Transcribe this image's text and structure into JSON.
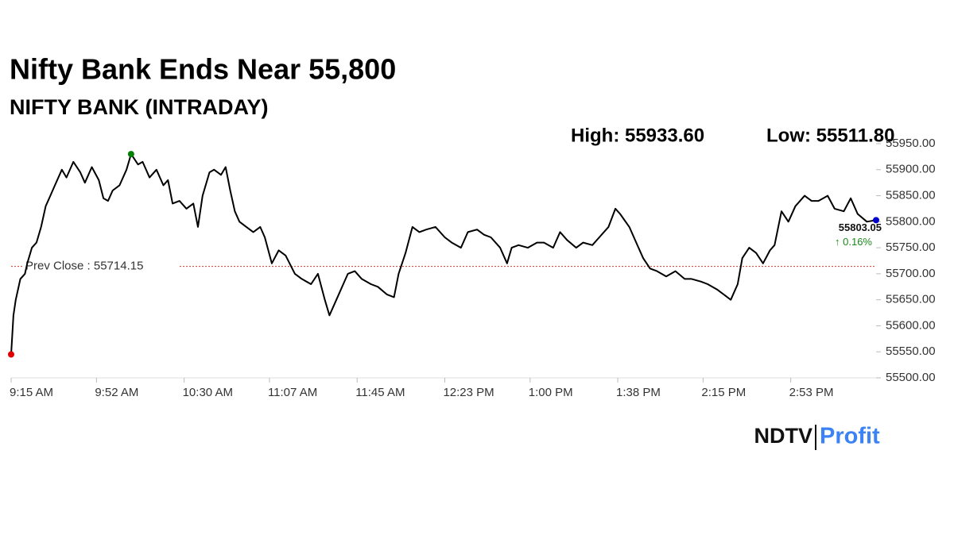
{
  "chart_data": {
    "type": "line",
    "title": "Nifty Bank Ends Near 55,800",
    "subtitle": "NIFTY BANK (INTRADAY)",
    "high": {
      "value": 55933.6,
      "label": "High: 55933.60"
    },
    "low": {
      "value": 55511.8,
      "label": "Low: 55511.80"
    },
    "prev_close": {
      "value": 55714.15,
      "label": "Prev Close : 55714.15"
    },
    "last": {
      "value": 55803.05,
      "label": "55803.05"
    },
    "change": {
      "value": 0.16,
      "label": "↑ 0.16%"
    },
    "xlim": [
      555,
      930
    ],
    "xticks": [
      {
        "value": 555,
        "label": "9:15 AM"
      },
      {
        "value": 592,
        "label": "9:52 AM"
      },
      {
        "value": 630,
        "label": "10:30 AM"
      },
      {
        "value": 667,
        "label": "11:07 AM"
      },
      {
        "value": 705,
        "label": "11:45 AM"
      },
      {
        "value": 743,
        "label": "12:23 PM"
      },
      {
        "value": 780,
        "label": "1:00 PM"
      },
      {
        "value": 818,
        "label": "1:38 PM"
      },
      {
        "value": 855,
        "label": "2:15 PM"
      },
      {
        "value": 893,
        "label": "2:53 PM"
      }
    ],
    "ylim": [
      55500,
      55950
    ],
    "yticks": [
      {
        "value": 55500,
        "label": "55500.00"
      },
      {
        "value": 55550,
        "label": "55550.00"
      },
      {
        "value": 55600,
        "label": "55600.00"
      },
      {
        "value": 55650,
        "label": "55650.00"
      },
      {
        "value": 55700,
        "label": "55700.00"
      },
      {
        "value": 55750,
        "label": "55750.00"
      },
      {
        "value": 55800,
        "label": "55800.00"
      },
      {
        "value": 55850,
        "label": "55850.00"
      },
      {
        "value": 55900,
        "label": "55900.00"
      },
      {
        "value": 55950,
        "label": "55950.00"
      }
    ],
    "x": [
      555,
      556,
      557,
      559,
      561,
      562,
      564,
      566,
      568,
      570,
      572,
      574,
      577,
      579,
      582,
      585,
      587,
      590,
      593,
      595,
      597,
      599,
      602,
      605,
      607,
      610,
      612,
      615,
      618,
      621,
      623,
      625,
      628,
      631,
      634,
      636,
      638,
      641,
      643,
      646,
      648,
      650,
      652,
      654,
      657,
      660,
      663,
      665,
      668,
      671,
      674,
      678,
      681,
      685,
      688,
      691,
      693,
      696,
      699,
      701,
      704,
      707,
      711,
      714,
      718,
      721,
      723,
      726,
      729,
      732,
      735,
      739,
      743,
      746,
      750,
      753,
      757,
      760,
      763,
      767,
      770,
      772,
      775,
      779,
      783,
      786,
      790,
      793,
      796,
      800,
      803,
      807,
      810,
      814,
      817,
      819,
      823,
      826,
      829,
      832,
      835,
      839,
      843,
      847,
      850,
      854,
      857,
      861,
      864,
      867,
      870,
      872,
      875,
      878,
      881,
      884,
      886,
      889,
      892,
      895,
      899,
      902,
      905,
      909,
      912,
      916,
      919,
      922,
      926,
      930
    ],
    "series": [
      {
        "name": "NIFTY BANK",
        "color": "#000000",
        "values": [
          55545,
          55620,
          55650,
          55690,
          55700,
          55720,
          55750,
          55760,
          55790,
          55830,
          55850,
          55870,
          55900,
          55885,
          55915,
          55895,
          55875,
          55905,
          55880,
          55845,
          55840,
          55860,
          55870,
          55900,
          55930,
          55910,
          55915,
          55885,
          55900,
          55870,
          55880,
          55835,
          55840,
          55825,
          55835,
          55790,
          55850,
          55895,
          55900,
          55890,
          55905,
          55860,
          55820,
          55800,
          55790,
          55780,
          55790,
          55770,
          55720,
          55745,
          55735,
          55700,
          55690,
          55680,
          55700,
          55650,
          55620,
          55650,
          55680,
          55700,
          55705,
          55690,
          55680,
          55675,
          55660,
          55655,
          55700,
          55740,
          55790,
          55780,
          55785,
          55790,
          55770,
          55760,
          55750,
          55780,
          55785,
          55775,
          55770,
          55750,
          55720,
          55750,
          55755,
          55750,
          55760,
          55760,
          55750,
          55780,
          55765,
          55750,
          55760,
          55755,
          55770,
          55790,
          55825,
          55815,
          55790,
          55760,
          55730,
          55710,
          55705,
          55695,
          55705,
          55690,
          55690,
          55685,
          55680,
          55670,
          55660,
          55650,
          55680,
          55730,
          55750,
          55740,
          55720,
          55745,
          55755,
          55820,
          55800,
          55830,
          55850,
          55840,
          55840,
          55850,
          55825,
          55820,
          55845,
          55815,
          55800,
          55803.05
        ]
      }
    ],
    "marker_colors": {
      "start": "#e00000",
      "high": "#008000",
      "last": "#0000cc"
    },
    "brand": {
      "left": "NDTV",
      "right": "Profit"
    }
  }
}
